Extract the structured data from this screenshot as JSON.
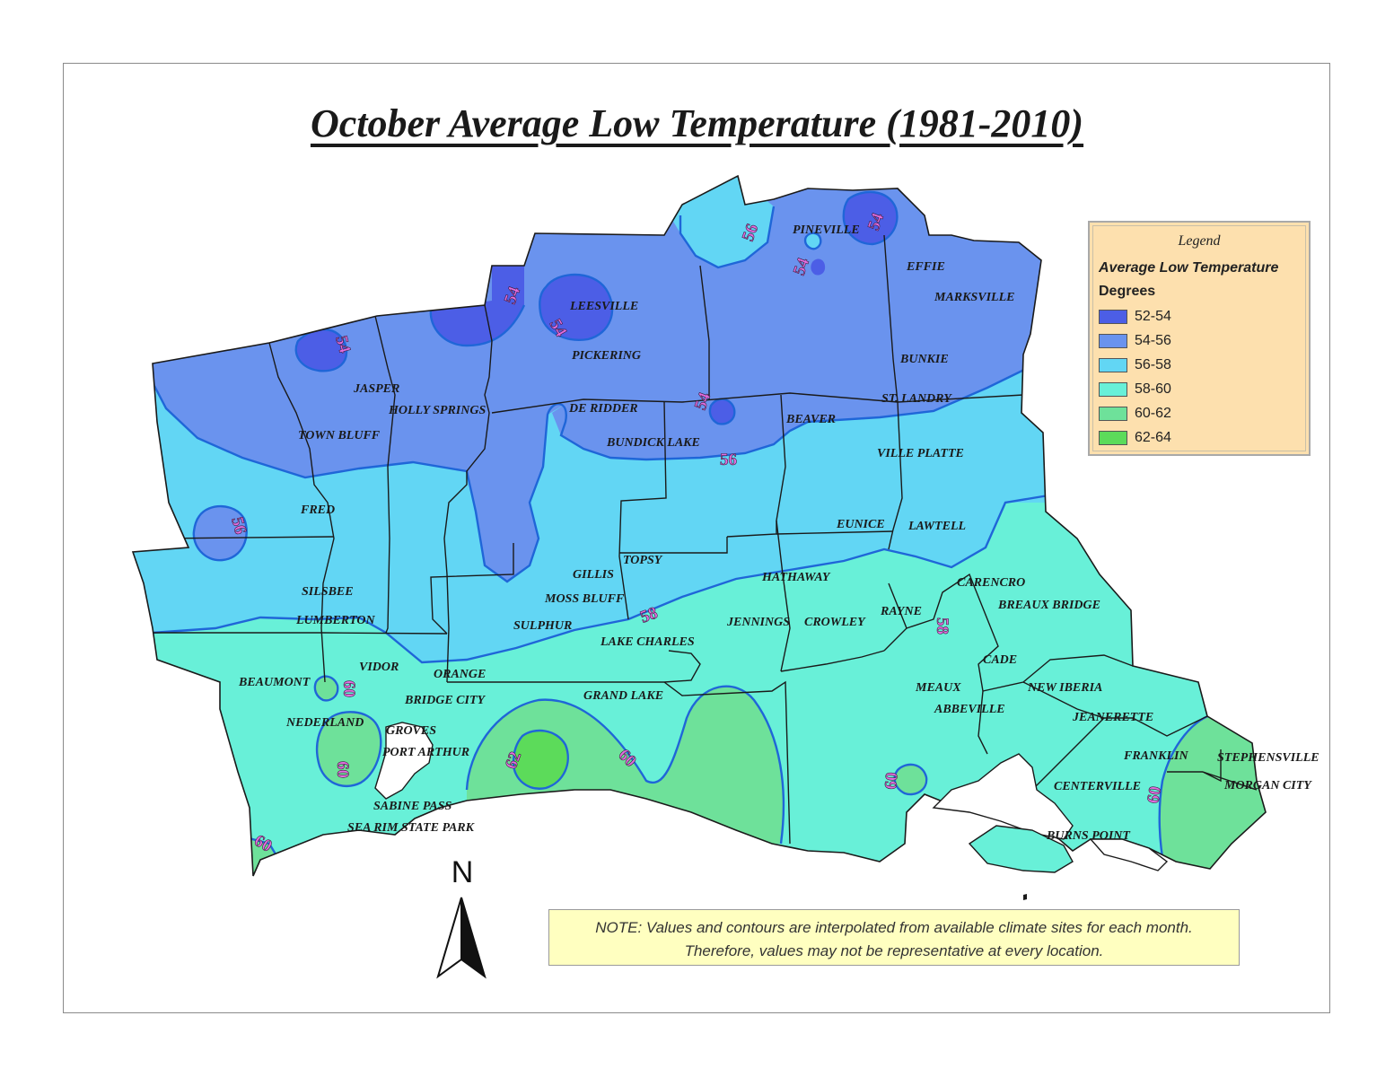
{
  "title": "October Average Low Temperature (1981-2010)",
  "legend": {
    "title": "Legend",
    "subtitle": "Average Low Temperature",
    "unit": "Degrees",
    "items": [
      {
        "label": "52-54",
        "color": "#4c5ee6"
      },
      {
        "label": "54-56",
        "color": "#6a93ee"
      },
      {
        "label": "56-58",
        "color": "#62d6f4"
      },
      {
        "label": "58-60",
        "color": "#68f0d8"
      },
      {
        "label": "60-62",
        "color": "#6ee19a"
      },
      {
        "label": "62-64",
        "color": "#5cdb5a"
      }
    ]
  },
  "note": {
    "line1": "NOTE: Values and contours are interpolated from available climate sites for each month.",
    "line2": "Therefore, values may not be representative at every location."
  },
  "north_arrow": {
    "label": "N"
  },
  "contour_labels": [
    "54",
    "54",
    "54",
    "54",
    "54",
    "54",
    "56",
    "56",
    "56",
    "58",
    "58",
    "60",
    "60",
    "60",
    "60",
    "60",
    "60",
    "62"
  ],
  "places": [
    "PINEVILLE",
    "EFFIE",
    "MARKSVILLE",
    "LEESVILLE",
    "PICKERING",
    "BUNKIE",
    "JASPER",
    "ST. LANDRY",
    "HOLLY SPRINGS",
    "DE RIDDER",
    "BEAVER",
    "TOWN BLUFF",
    "BUNDICK LAKE",
    "VILLE PLATTE",
    "FRED",
    "EUNICE",
    "LAWTELL",
    "TOPSY",
    "GILLIS",
    "HATHAWAY",
    "CARENCRO",
    "SILSBEE",
    "MOSS BLUFF",
    "BREAUX BRIDGE",
    "LUMBERTON",
    "SULPHUR",
    "RAYNE",
    "JENNINGS",
    "CROWLEY",
    "LAKE CHARLES",
    "CADE",
    "VIDOR",
    "ORANGE",
    "BEAUMONT",
    "MEAUX",
    "NEW IBERIA",
    "BRIDGE CITY",
    "GRAND LAKE",
    "ABBEVILLE",
    "NEDERLAND",
    "JEANERETTE",
    "GROVES",
    "PORT ARTHUR",
    "FRANKLIN",
    "STEPHENSVILLE",
    "CENTERVILLE",
    "MORGAN CITY",
    "SABINE PASS",
    "SEA RIM STATE PARK",
    "BURNS POINT"
  ]
}
